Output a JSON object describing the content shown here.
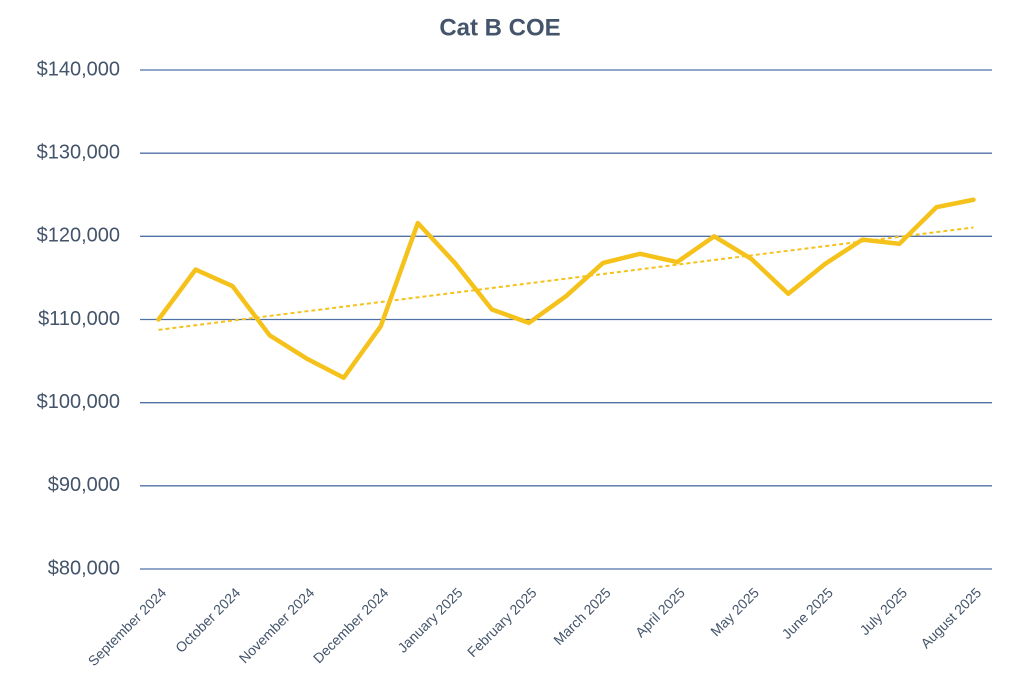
{
  "chart_data": {
    "type": "line",
    "title": "Cat B COE",
    "categories": [
      "September 2024",
      null,
      "October 2024",
      null,
      "November 2024",
      null,
      "December 2024",
      null,
      "January 2025",
      null,
      "February 2025",
      null,
      "March 2025",
      null,
      "April 2025",
      null,
      "May 2025",
      null,
      "June 2025",
      null,
      "July 2025",
      null,
      "August 2025"
    ],
    "series": [
      {
        "color": "#f5c21b",
        "values": [
          110000,
          116000,
          114000,
          108100,
          105300,
          103000,
          109200,
          121600,
          116800,
          111200,
          109600,
          112800,
          116800,
          117900,
          116900,
          120000,
          117300,
          113100,
          116700,
          119600,
          119100,
          123500,
          124400
        ]
      }
    ],
    "trendline": true,
    "ylim": [
      80000,
      140000
    ],
    "yticks": [
      {
        "value": 80000,
        "label": "$80,000"
      },
      {
        "value": 90000,
        "label": "$90,000"
      },
      {
        "value": 100000,
        "label": "$100,000"
      },
      {
        "value": 110000,
        "label": "$110,000"
      },
      {
        "value": 120000,
        "label": "$120,000"
      },
      {
        "value": 130000,
        "label": "$130,000"
      },
      {
        "value": 140000,
        "label": "$140,000"
      }
    ],
    "grid": true
  }
}
